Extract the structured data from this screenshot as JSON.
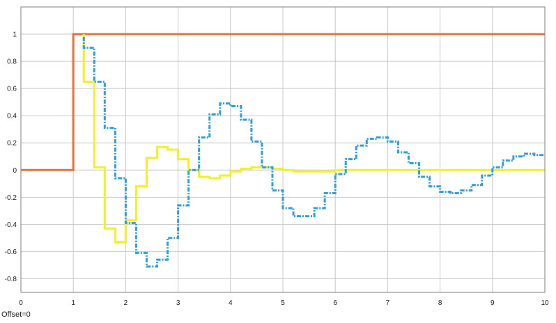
{
  "chart_data": {
    "type": "line",
    "xlim": [
      0,
      10
    ],
    "ylim": [
      -0.9,
      1.2
    ],
    "x_ticks": [
      "0",
      "1",
      "2",
      "3",
      "4",
      "5",
      "6",
      "7",
      "8",
      "9",
      "10"
    ],
    "y_ticks": [
      "1",
      "0.8",
      "0.6",
      "0.4",
      "0.2",
      "0",
      "-0.2",
      "-0.4",
      "-0.6",
      "-0.8"
    ],
    "grid": true,
    "series": [
      {
        "color": "#e8713a",
        "style": "solid-step",
        "points": [
          [
            0,
            0
          ],
          [
            1,
            0
          ],
          [
            1,
            1
          ],
          [
            10,
            1
          ]
        ]
      },
      {
        "color": "#f3f02a",
        "style": "solid-step",
        "points": [
          [
            1.2,
            1
          ],
          [
            1.2,
            0.65
          ],
          [
            1.4,
            0.65
          ],
          [
            1.4,
            0.02
          ],
          [
            1.6,
            0.02
          ],
          [
            1.6,
            -0.43
          ],
          [
            1.8,
            -0.43
          ],
          [
            1.8,
            -0.53
          ],
          [
            2.0,
            -0.53
          ],
          [
            2.0,
            -0.37
          ],
          [
            2.2,
            -0.37
          ],
          [
            2.2,
            -0.12
          ],
          [
            2.4,
            -0.12
          ],
          [
            2.4,
            0.09
          ],
          [
            2.6,
            0.09
          ],
          [
            2.6,
            0.17
          ],
          [
            2.8,
            0.17
          ],
          [
            2.8,
            0.15
          ],
          [
            3.0,
            0.15
          ],
          [
            3.0,
            0.08
          ],
          [
            3.2,
            0.08
          ],
          [
            3.2,
            0.0
          ],
          [
            3.4,
            0.0
          ],
          [
            3.4,
            -0.05
          ],
          [
            3.6,
            -0.05
          ],
          [
            3.6,
            -0.06
          ],
          [
            3.8,
            -0.06
          ],
          [
            3.8,
            -0.04
          ],
          [
            4.0,
            -0.04
          ],
          [
            4.0,
            -0.01
          ],
          [
            4.2,
            -0.01
          ],
          [
            4.2,
            0.01
          ],
          [
            4.4,
            0.01
          ],
          [
            4.4,
            0.02
          ],
          [
            4.6,
            0.02
          ],
          [
            4.6,
            0.02
          ],
          [
            4.8,
            0.02
          ],
          [
            4.8,
            0.01
          ],
          [
            5.0,
            0.01
          ],
          [
            5.0,
            0.0
          ],
          [
            5.2,
            0.0
          ],
          [
            5.2,
            -0.01
          ],
          [
            6.0,
            -0.01
          ],
          [
            6.0,
            0.0
          ],
          [
            10,
            0.0
          ]
        ]
      },
      {
        "color": "#2e9fdc",
        "style": "dashdot-step",
        "points": [
          [
            1.2,
            0.98
          ],
          [
            1.2,
            0.9
          ],
          [
            1.4,
            0.9
          ],
          [
            1.4,
            0.65
          ],
          [
            1.6,
            0.65
          ],
          [
            1.6,
            0.31
          ],
          [
            1.8,
            0.31
          ],
          [
            1.8,
            -0.06
          ],
          [
            2.0,
            -0.06
          ],
          [
            2.0,
            -0.39
          ],
          [
            2.2,
            -0.39
          ],
          [
            2.2,
            -0.61
          ],
          [
            2.4,
            -0.61
          ],
          [
            2.4,
            -0.71
          ],
          [
            2.6,
            -0.71
          ],
          [
            2.6,
            -0.66
          ],
          [
            2.8,
            -0.66
          ],
          [
            2.8,
            -0.5
          ],
          [
            3.0,
            -0.5
          ],
          [
            3.0,
            -0.26
          ],
          [
            3.2,
            -0.26
          ],
          [
            3.2,
            0.0
          ],
          [
            3.4,
            0.0
          ],
          [
            3.4,
            0.24
          ],
          [
            3.6,
            0.24
          ],
          [
            3.6,
            0.41
          ],
          [
            3.8,
            0.41
          ],
          [
            3.8,
            0.49
          ],
          [
            4.0,
            0.49
          ],
          [
            4.0,
            0.47
          ],
          [
            4.2,
            0.47
          ],
          [
            4.2,
            0.37
          ],
          [
            4.4,
            0.37
          ],
          [
            4.4,
            0.21
          ],
          [
            4.6,
            0.21
          ],
          [
            4.6,
            0.02
          ],
          [
            4.8,
            0.02
          ],
          [
            4.8,
            -0.15
          ],
          [
            5.0,
            -0.15
          ],
          [
            5.0,
            -0.28
          ],
          [
            5.2,
            -0.28
          ],
          [
            5.2,
            -0.34
          ],
          [
            5.6,
            -0.34
          ],
          [
            5.6,
            -0.28
          ],
          [
            5.8,
            -0.28
          ],
          [
            5.8,
            -0.17
          ],
          [
            6.0,
            -0.17
          ],
          [
            6.0,
            -0.03
          ],
          [
            6.2,
            -0.03
          ],
          [
            6.2,
            0.08
          ],
          [
            6.4,
            0.08
          ],
          [
            6.4,
            0.18
          ],
          [
            6.6,
            0.18
          ],
          [
            6.6,
            0.23
          ],
          [
            6.8,
            0.23
          ],
          [
            6.8,
            0.24
          ],
          [
            7.0,
            0.24
          ],
          [
            7.0,
            0.21
          ],
          [
            7.2,
            0.21
          ],
          [
            7.2,
            0.13
          ],
          [
            7.4,
            0.13
          ],
          [
            7.4,
            0.05
          ],
          [
            7.6,
            0.05
          ],
          [
            7.6,
            -0.05
          ],
          [
            7.8,
            -0.05
          ],
          [
            7.8,
            -0.12
          ],
          [
            8.0,
            -0.12
          ],
          [
            8.0,
            -0.16
          ],
          [
            8.2,
            -0.16
          ],
          [
            8.2,
            -0.17
          ],
          [
            8.4,
            -0.17
          ],
          [
            8.4,
            -0.15
          ],
          [
            8.6,
            -0.15
          ],
          [
            8.6,
            -0.11
          ],
          [
            8.8,
            -0.11
          ],
          [
            8.8,
            -0.04
          ],
          [
            9.0,
            -0.04
          ],
          [
            9.0,
            0.02
          ],
          [
            9.2,
            0.02
          ],
          [
            9.2,
            0.07
          ],
          [
            9.4,
            0.07
          ],
          [
            9.4,
            0.1
          ],
          [
            9.6,
            0.1
          ],
          [
            9.6,
            0.12
          ],
          [
            9.8,
            0.12
          ],
          [
            9.8,
            0.11
          ],
          [
            10.0,
            0.11
          ]
        ]
      }
    ]
  },
  "footer": {
    "offset_label": "Offset=0"
  },
  "colors": {
    "background": "#ffffff",
    "grid": "#c8c8c8",
    "frame": "#7f7f7f",
    "tick_text": "#1a1a1a"
  }
}
